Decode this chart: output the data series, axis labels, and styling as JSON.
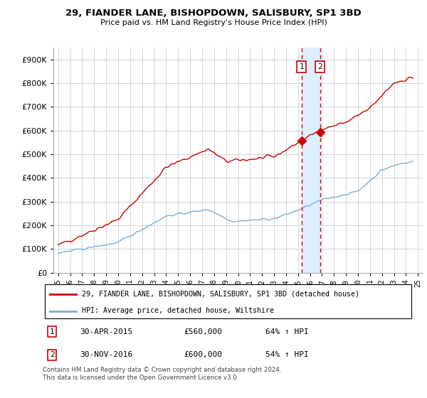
{
  "title": "29, FIANDER LANE, BISHOPDOWN, SALISBURY, SP1 3BD",
  "subtitle": "Price paid vs. HM Land Registry's House Price Index (HPI)",
  "legend_line1": "29, FIANDER LANE, BISHOPDOWN, SALISBURY, SP1 3BD (detached house)",
  "legend_line2": "HPI: Average price, detached house, Wiltshire",
  "sale1_date": "30-APR-2015",
  "sale1_price": "£560,000",
  "sale1_hpi": "64% ↑ HPI",
  "sale2_date": "30-NOV-2016",
  "sale2_price": "£600,000",
  "sale2_hpi": "54% ↑ HPI",
  "footer": "Contains HM Land Registry data © Crown copyright and database right 2024.\nThis data is licensed under the Open Government Licence v3.0.",
  "red_color": "#cc0000",
  "blue_color": "#7aafd4",
  "shade_color": "#ddeeff",
  "sale1_year": 2015.29,
  "sale2_year": 2016.83,
  "ylim": [
    0,
    950000
  ],
  "yticks": [
    0,
    100000,
    200000,
    300000,
    400000,
    500000,
    600000,
    700000,
    800000,
    900000
  ],
  "xlim": [
    1994.6,
    2025.4
  ]
}
